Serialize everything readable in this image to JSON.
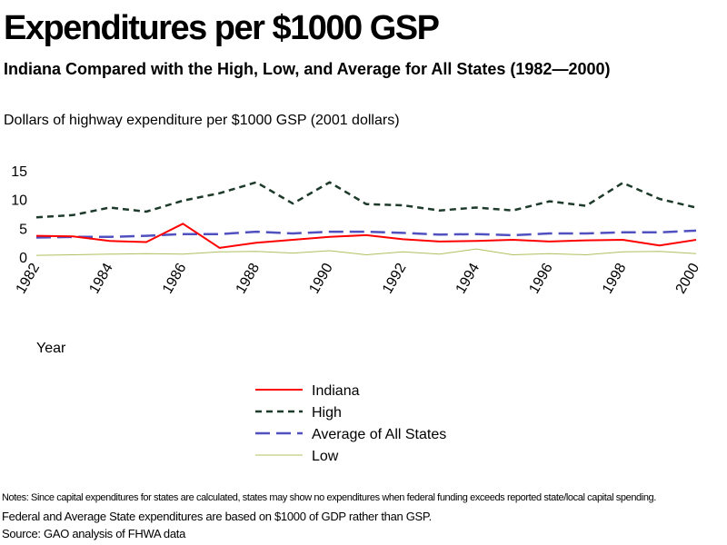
{
  "title": "Expenditures per $1000 GSP",
  "subtitle": "Indiana Compared with the High, Low, and Average for All States (1982—2000)",
  "unit_label": "Dollars of highway expenditure per $1000 GSP  (2001 dollars)",
  "notes": {
    "line1": "Notes: Since capital expenditures for states are calculated, states may show no expenditures when federal funding exceeds reported state/local capital spending.",
    "line2": "Federal and Average State expenditures are based on $1000 of GDP rather than GSP.",
    "source": "Source: GAO  analysis of FHWA data"
  },
  "chart_data": {
    "type": "line",
    "title": "Expenditures per $1000 GSP",
    "xlabel": "Year",
    "ylabel": "Dollars of highway expenditure per $1000 GSP  (2001 dollars)",
    "x": [
      1982,
      1983,
      1984,
      1985,
      1986,
      1987,
      1988,
      1989,
      1990,
      1991,
      1992,
      1993,
      1994,
      1995,
      1996,
      1997,
      1998,
      1999,
      2000
    ],
    "xticks": [
      "1982",
      "1984",
      "1986",
      "1988",
      "1990",
      "1992",
      "1994",
      "1996",
      "1998",
      "2000"
    ],
    "yticks": [
      "0",
      "5",
      "10",
      "15"
    ],
    "ylim": [
      0,
      15
    ],
    "legend_position": "bottom-center",
    "grid": false,
    "series": [
      {
        "name": "Indiana",
        "color": "#ff0000",
        "style": "solid",
        "values": [
          3.7,
          3.6,
          2.8,
          2.6,
          5.8,
          1.6,
          2.5,
          3.0,
          3.5,
          3.8,
          3.1,
          2.7,
          2.8,
          3.0,
          2.7,
          2.9,
          3.0,
          2.0,
          3.0
        ]
      },
      {
        "name": "High",
        "color": "#1d3a2a",
        "style": "dashed-short",
        "values": [
          6.9,
          7.3,
          8.6,
          7.9,
          9.8,
          11.1,
          13.0,
          9.3,
          13.0,
          9.2,
          9.0,
          8.1,
          8.6,
          8.1,
          9.7,
          8.9,
          12.9,
          10.1,
          8.6
        ]
      },
      {
        "name": "Average of All States",
        "color": "#5050c0",
        "style": "dashed-long",
        "values": [
          3.4,
          3.5,
          3.5,
          3.7,
          4.0,
          4.0,
          4.4,
          4.1,
          4.4,
          4.4,
          4.2,
          3.9,
          4.0,
          3.8,
          4.1,
          4.1,
          4.3,
          4.3,
          4.6
        ]
      },
      {
        "name": "Low",
        "color": "#b0c060",
        "style": "solid-thin",
        "values": [
          0.3,
          0.4,
          0.5,
          0.6,
          0.5,
          0.9,
          1.0,
          0.7,
          1.1,
          0.4,
          0.9,
          0.5,
          1.4,
          0.4,
          0.6,
          0.4,
          0.9,
          1.0,
          0.6
        ]
      }
    ]
  }
}
